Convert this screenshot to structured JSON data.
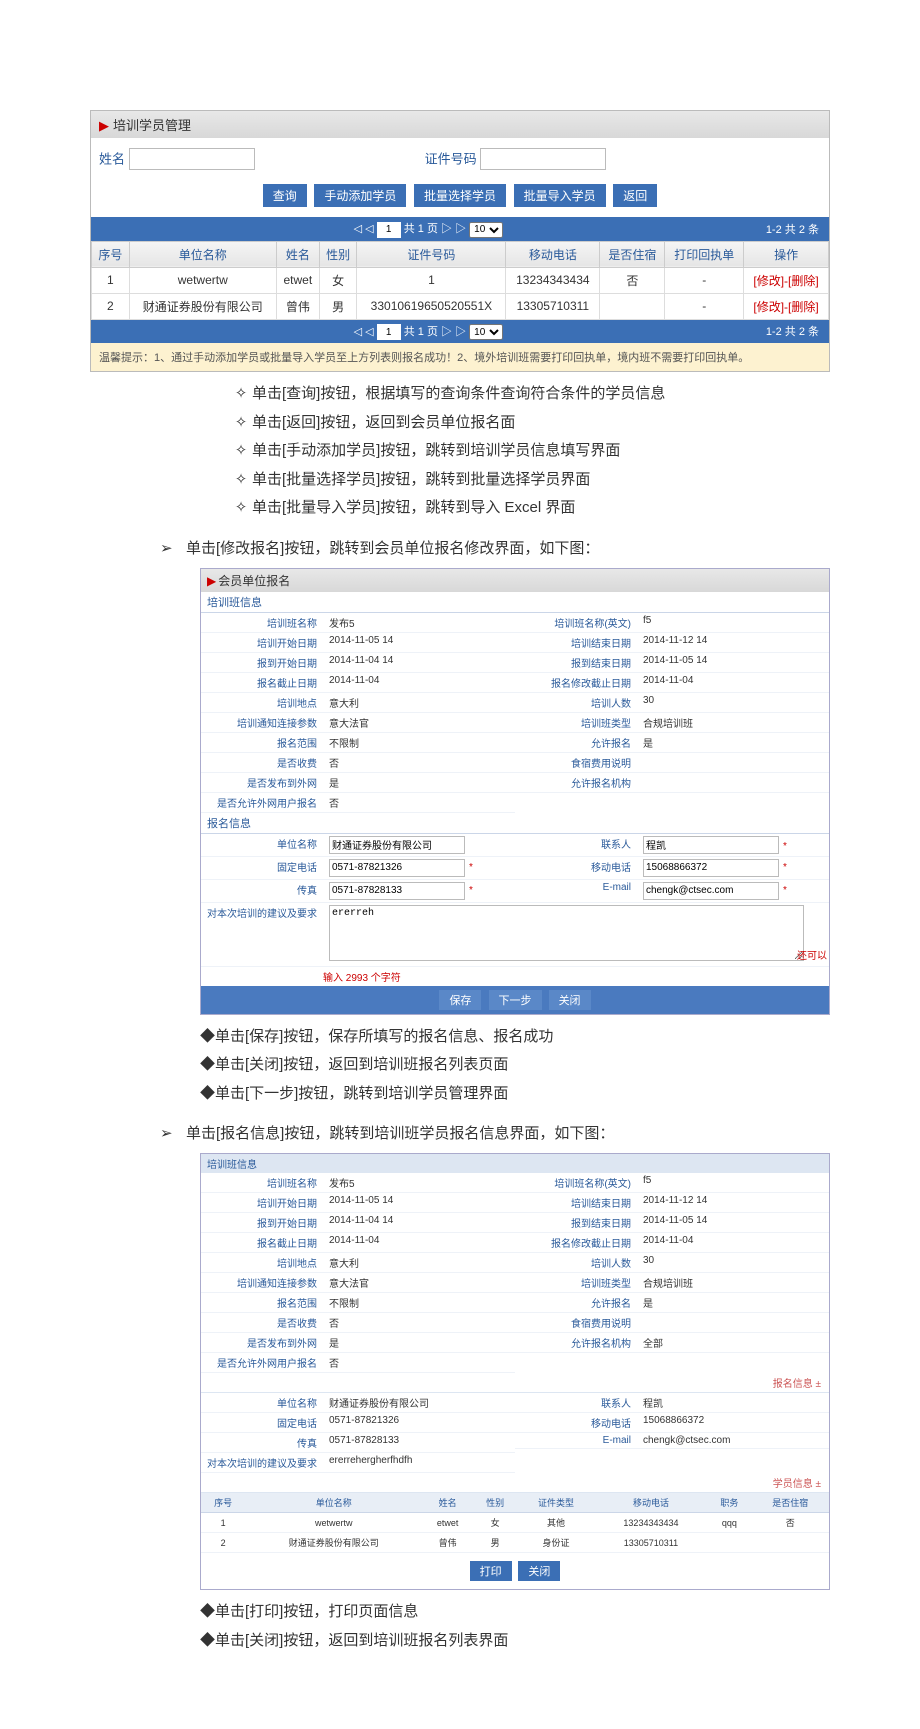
{
  "panel1": {
    "title": "培训学员管理",
    "filter": {
      "nameLabel": "姓名",
      "idLabel": "证件号码"
    },
    "buttons": {
      "query": "查询",
      "manualAdd": "手动添加学员",
      "batchSelect": "批量选择学员",
      "batchImport": "批量导入学员",
      "back": "返回"
    },
    "pager": {
      "page": "1",
      "total": "共 1 页",
      "perPage": "10",
      "summary": "1-2  共 2 条"
    },
    "cols": {
      "seq": "序号",
      "org": "单位名称",
      "name": "姓名",
      "gender": "性别",
      "idno": "证件号码",
      "mobile": "移动电话",
      "stay": "是否住宿",
      "receipt": "打印回执单",
      "op": "操作"
    },
    "rows": [
      {
        "seq": "1",
        "org": "wetwertw",
        "name": "etwet",
        "gender": "女",
        "idno": "1",
        "mobile": "13234343434",
        "stay": "否",
        "receipt": "-",
        "op": "[修改]-[删除]"
      },
      {
        "seq": "2",
        "org": "财通证券股份有限公司",
        "name": "曾伟",
        "gender": "男",
        "idno": "33010619650520551X",
        "mobile": "13305710311",
        "stay": "",
        "receipt": "-",
        "op": "[修改]-[删除]"
      }
    ],
    "hint": "温馨提示：1、通过手动添加学员或批量导入学员至上方列表则报名成功！2、境外培训班需要打印回执单，境内班不需要打印回执单。"
  },
  "list1": [
    "单击[查询]按钮，根据填写的查询条件查询符合条件的学员信息",
    "单击[返回]按钮，返回到会员单位报名面",
    "单击[手动添加学员]按钮，跳转到培训学员信息填写界面",
    "单击[批量选择学员]按钮，跳转到批量选择学员界面",
    "单击[批量导入学员]按钮，跳转到导入 Excel 界面"
  ],
  "arrow1": "单击[修改报名]按钮，跳转到会员单位报名修改界面，如下图：",
  "form1": {
    "header": "会员单位报名",
    "sec1": "培训班信息",
    "left": [
      {
        "k": "培训班名称",
        "v": "发布5"
      },
      {
        "k": "培训开始日期",
        "v": "2014-11-05 14"
      },
      {
        "k": "报到开始日期",
        "v": "2014-11-04 14"
      },
      {
        "k": "报名截止日期",
        "v": "2014-11-04"
      },
      {
        "k": "培训地点",
        "v": "意大利"
      },
      {
        "k": "培训通知连接参数",
        "v": "意大法官"
      },
      {
        "k": "报名范围",
        "v": "不限制"
      },
      {
        "k": "是否收费",
        "v": "否"
      },
      {
        "k": "是否发布到外网",
        "v": "是"
      },
      {
        "k": "是否允许外网用户报名",
        "v": "否"
      }
    ],
    "right": [
      {
        "k": "培训班名称(英文)",
        "v": "f5"
      },
      {
        "k": "培训结束日期",
        "v": "2014-11-12 14"
      },
      {
        "k": "报到结束日期",
        "v": "2014-11-05 14"
      },
      {
        "k": "报名修改截止日期",
        "v": "2014-11-04"
      },
      {
        "k": "培训人数",
        "v": "30"
      },
      {
        "k": "培训班类型",
        "v": "合规培训班"
      },
      {
        "k": "允许报名",
        "v": "是"
      },
      {
        "k": "食宿费用说明",
        "v": ""
      },
      {
        "k": "允许报名机构",
        "v": ""
      }
    ],
    "sec2": "报名信息",
    "reg": {
      "orgK": "单位名称",
      "orgV": "财通证券股份有限公司",
      "contactK": "联系人",
      "contactV": "程凯",
      "telK": "固定电话",
      "telV": "0571-87821326",
      "mobK": "移动电话",
      "mobV": "15068866372",
      "faxK": "传真",
      "faxV": "0571-87828133",
      "emailK": "E-mail",
      "emailV": "chengk@ctsec.com",
      "sugK": "对本次培训的建议及要求",
      "sugV": "ererreh",
      "charHint": "输入 2993 个字符",
      "sideNote": "还可以"
    },
    "btns": {
      "save": "保存",
      "next": "下一步",
      "close": "关闭"
    }
  },
  "list2": [
    "单击[保存]按钮，保存所填写的报名信息、报名成功",
    "单击[关闭]按钮，返回到培训班报名列表页面",
    "单击[下一步]按钮，跳转到培训学员管理界面"
  ],
  "arrow2": "单击[报名信息]按钮，跳转到培训班学员报名信息界面，如下图：",
  "form2": {
    "sec1": "培训班信息",
    "left": [
      {
        "k": "培训班名称",
        "v": "发布5"
      },
      {
        "k": "培训开始日期",
        "v": "2014-11-05 14"
      },
      {
        "k": "报到开始日期",
        "v": "2014-11-04 14"
      },
      {
        "k": "报名截止日期",
        "v": "2014-11-04"
      },
      {
        "k": "培训地点",
        "v": "意大利"
      },
      {
        "k": "培训通知连接参数",
        "v": "意大法官"
      },
      {
        "k": "报名范围",
        "v": "不限制"
      },
      {
        "k": "是否收费",
        "v": "否"
      },
      {
        "k": "是否发布到外网",
        "v": "是"
      },
      {
        "k": "是否允许外网用户报名",
        "v": "否"
      }
    ],
    "right": [
      {
        "k": "培训班名称(英文)",
        "v": "f5"
      },
      {
        "k": "培训结束日期",
        "v": "2014-11-12 14"
      },
      {
        "k": "报到结束日期",
        "v": "2014-11-05 14"
      },
      {
        "k": "报名修改截止日期",
        "v": "2014-11-04"
      },
      {
        "k": "培训人数",
        "v": "30"
      },
      {
        "k": "培训班类型",
        "v": "合规培训班"
      },
      {
        "k": "允许报名",
        "v": "是"
      },
      {
        "k": "食宿费用说明",
        "v": ""
      },
      {
        "k": "允许报名机构",
        "v": "全部"
      }
    ],
    "tag1": "报名信息 ±",
    "reg": [
      {
        "k1": "单位名称",
        "v1": "财通证券股份有限公司",
        "k2": "联系人",
        "v2": "程凯"
      },
      {
        "k1": "固定电话",
        "v1": "0571-87821326",
        "k2": "移动电话",
        "v2": "15068866372"
      },
      {
        "k1": "传真",
        "v1": "0571-87828133",
        "k2": "E-mail",
        "v2": "chengk@ctsec.com"
      },
      {
        "k1": "对本次培训的建议及要求",
        "v1": "ererrehergherfhdfh",
        "k2": "",
        "v2": ""
      }
    ],
    "tag2": "学员信息 ±",
    "cols": {
      "seq": "序号",
      "org": "单位名称",
      "name": "姓名",
      "gender": "性别",
      "idtype": "证件类型",
      "mobile": "移动电话",
      "job": "职务",
      "stay": "是否住宿"
    },
    "rows": [
      {
        "seq": "1",
        "org": "wetwertw",
        "name": "etwet",
        "gender": "女",
        "idtype": "其他",
        "mobile": "13234343434",
        "job": "qqq",
        "stay": "否"
      },
      {
        "seq": "2",
        "org": "财通证券股份有限公司",
        "name": "曾伟",
        "gender": "男",
        "idtype": "身份证",
        "mobile": "13305710311",
        "job": "",
        "stay": ""
      }
    ],
    "btns": {
      "print": "打印",
      "close": "关闭"
    }
  },
  "list3": [
    "单击[打印]按钮，打印页面信息",
    "单击[关闭]按钮，返回到培训班报名列表界面"
  ]
}
